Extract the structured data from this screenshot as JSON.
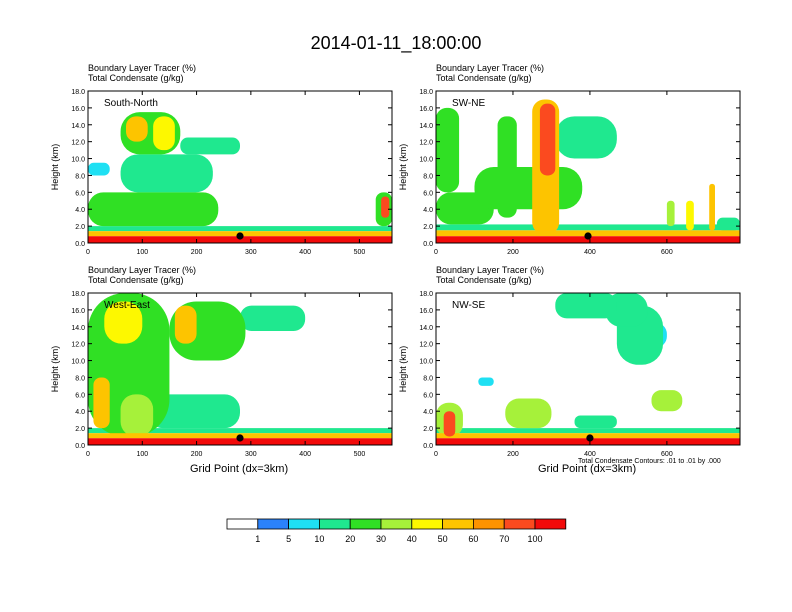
{
  "page_title": "2014-01-11_18:00:00",
  "chart_data": [
    {
      "type": "heatmap",
      "title_lines": [
        "Boundary Layer Tracer   (%)",
        "Total Condensate   (g/kg)"
      ],
      "label": "South-North",
      "xlabel": "",
      "ylabel": "Height (km)",
      "xlim": [
        0,
        560
      ],
      "ylim": [
        0,
        18
      ],
      "x_ticks": [
        "0",
        "100",
        "200",
        "300",
        "400",
        "500"
      ],
      "x_tick_values": [
        0,
        100,
        200,
        300,
        400,
        500
      ],
      "y_ticks": [
        "0.0",
        "2.0",
        "4.0",
        "6.0",
        "8.0",
        "10.0",
        "12.0",
        "14.0",
        "16.0",
        "18.0"
      ],
      "y_tick_values": [
        0,
        2,
        4,
        6,
        8,
        10,
        12,
        14,
        16,
        18
      ],
      "marker_x": 280,
      "blobs": [
        {
          "x": [
            0,
            560
          ],
          "y": [
            0,
            0.8
          ],
          "level": 100
        },
        {
          "x": [
            0,
            560
          ],
          "y": [
            0.8,
            1.4
          ],
          "level": 50
        },
        {
          "x": [
            0,
            560
          ],
          "y": [
            1.4,
            2.0
          ],
          "level": 10
        },
        {
          "x": [
            0,
            240
          ],
          "y": [
            2.0,
            6.0
          ],
          "level": 20
        },
        {
          "x": [
            60,
            230
          ],
          "y": [
            6.0,
            10.5
          ],
          "level": 10
        },
        {
          "x": [
            60,
            170
          ],
          "y": [
            10.5,
            15.5
          ],
          "level": 20
        },
        {
          "x": [
            70,
            110
          ],
          "y": [
            12.0,
            15.0
          ],
          "level": 50
        },
        {
          "x": [
            120,
            160
          ],
          "y": [
            11.0,
            15.0
          ],
          "level": 40
        },
        {
          "x": [
            170,
            280
          ],
          "y": [
            10.5,
            12.5
          ],
          "level": 10
        },
        {
          "x": [
            0,
            40
          ],
          "y": [
            8.0,
            9.5
          ],
          "level": 5
        },
        {
          "x": [
            530,
            560
          ],
          "y": [
            2.0,
            6.0
          ],
          "level": 20
        },
        {
          "x": [
            540,
            555
          ],
          "y": [
            3.0,
            5.5
          ],
          "level": 70
        }
      ]
    },
    {
      "type": "heatmap",
      "title_lines": [
        "Boundary Layer Tracer   (%)",
        "Total Condensate   (g/kg)"
      ],
      "label": "SW-NE",
      "xlabel": "",
      "ylabel": "Height (km)",
      "xlim": [
        0,
        790
      ],
      "ylim": [
        0,
        18
      ],
      "x_ticks": [
        "0",
        "200",
        "400",
        "600"
      ],
      "x_tick_values": [
        0,
        200,
        400,
        600
      ],
      "y_ticks": [
        "0.0",
        "2.0",
        "4.0",
        "6.0",
        "8.0",
        "10.0",
        "12.0",
        "14.0",
        "16.0",
        "18.0"
      ],
      "y_tick_values": [
        0,
        2,
        4,
        6,
        8,
        10,
        12,
        14,
        16,
        18
      ],
      "marker_x": 395,
      "blobs": [
        {
          "x": [
            0,
            790
          ],
          "y": [
            0,
            0.8
          ],
          "level": 100
        },
        {
          "x": [
            0,
            790
          ],
          "y": [
            0.8,
            1.5
          ],
          "level": 50
        },
        {
          "x": [
            0,
            790
          ],
          "y": [
            1.5,
            2.2
          ],
          "level": 10
        },
        {
          "x": [
            0,
            150
          ],
          "y": [
            2.2,
            6.0
          ],
          "level": 20
        },
        {
          "x": [
            0,
            60
          ],
          "y": [
            6.0,
            16.0
          ],
          "level": 20
        },
        {
          "x": [
            100,
            380
          ],
          "y": [
            4.0,
            9.0
          ],
          "level": 20
        },
        {
          "x": [
            160,
            210
          ],
          "y": [
            3.0,
            15.0
          ],
          "level": 20
        },
        {
          "x": [
            250,
            320
          ],
          "y": [
            1.0,
            17.0
          ],
          "level": 50
        },
        {
          "x": [
            270,
            310
          ],
          "y": [
            8.0,
            16.5
          ],
          "level": 70
        },
        {
          "x": [
            310,
            470
          ],
          "y": [
            10.0,
            15.0
          ],
          "level": 10
        },
        {
          "x": [
            600,
            620
          ],
          "y": [
            2.0,
            5.0
          ],
          "level": 30
        },
        {
          "x": [
            650,
            670
          ],
          "y": [
            1.5,
            5.0
          ],
          "level": 40
        },
        {
          "x": [
            710,
            725
          ],
          "y": [
            1.5,
            7.0
          ],
          "level": 50
        },
        {
          "x": [
            730,
            790
          ],
          "y": [
            1.5,
            3.0
          ],
          "level": 10
        }
      ]
    },
    {
      "type": "heatmap",
      "title_lines": [
        "Boundary Layer Tracer   (%)",
        "Total Condensate   (g/kg)"
      ],
      "label": "West-East",
      "xlabel": "Grid Point (dx=3km)",
      "ylabel": "Height (km)",
      "xlim": [
        0,
        560
      ],
      "ylim": [
        0,
        18
      ],
      "x_ticks": [
        "0",
        "100",
        "200",
        "300",
        "400",
        "500"
      ],
      "x_tick_values": [
        0,
        100,
        200,
        300,
        400,
        500
      ],
      "y_ticks": [
        "0.0",
        "2.0",
        "4.0",
        "6.0",
        "8.0",
        "10.0",
        "12.0",
        "14.0",
        "16.0",
        "18.0"
      ],
      "y_tick_values": [
        0,
        2,
        4,
        6,
        8,
        10,
        12,
        14,
        16,
        18
      ],
      "marker_x": 280,
      "blobs": [
        {
          "x": [
            0,
            560
          ],
          "y": [
            0,
            0.8
          ],
          "level": 100
        },
        {
          "x": [
            0,
            560
          ],
          "y": [
            0.8,
            1.4
          ],
          "level": 50
        },
        {
          "x": [
            0,
            560
          ],
          "y": [
            1.4,
            2.0
          ],
          "level": 10
        },
        {
          "x": [
            0,
            150
          ],
          "y": [
            1.0,
            18.0
          ],
          "level": 20
        },
        {
          "x": [
            10,
            40
          ],
          "y": [
            2.0,
            8.0
          ],
          "level": 50
        },
        {
          "x": [
            60,
            120
          ],
          "y": [
            1.0,
            6.0
          ],
          "level": 30
        },
        {
          "x": [
            30,
            100
          ],
          "y": [
            12.0,
            17.0
          ],
          "level": 40
        },
        {
          "x": [
            150,
            290
          ],
          "y": [
            10.0,
            17.0
          ],
          "level": 20
        },
        {
          "x": [
            160,
            200
          ],
          "y": [
            12.0,
            16.5
          ],
          "level": 50
        },
        {
          "x": [
            110,
            280
          ],
          "y": [
            2.0,
            6.0
          ],
          "level": 10
        },
        {
          "x": [
            280,
            400
          ],
          "y": [
            13.5,
            16.5
          ],
          "level": 10
        }
      ]
    },
    {
      "type": "heatmap",
      "title_lines": [
        "Boundary Layer Tracer   (%)",
        "Total Condensate   (g/kg)"
      ],
      "label": "NW-SE",
      "xlabel": "Grid Point (dx=3km)",
      "ylabel": "Height (km)",
      "xlim": [
        0,
        790
      ],
      "ylim": [
        0,
        18
      ],
      "x_ticks": [
        "0",
        "200",
        "400",
        "600"
      ],
      "x_tick_values": [
        0,
        200,
        400,
        600
      ],
      "y_ticks": [
        "0.0",
        "2.0",
        "4.0",
        "6.0",
        "8.0",
        "10.0",
        "12.0",
        "14.0",
        "16.0",
        "18.0"
      ],
      "y_tick_values": [
        0,
        2,
        4,
        6,
        8,
        10,
        12,
        14,
        16,
        18
      ],
      "marker_x": 400,
      "footnote": "Total Condensate Contours: .01 to .01 by .000",
      "blobs": [
        {
          "x": [
            0,
            790
          ],
          "y": [
            0,
            0.8
          ],
          "level": 100
        },
        {
          "x": [
            0,
            790
          ],
          "y": [
            0.8,
            1.4
          ],
          "level": 50
        },
        {
          "x": [
            0,
            790
          ],
          "y": [
            1.4,
            2.0
          ],
          "level": 10
        },
        {
          "x": [
            0,
            70
          ],
          "y": [
            1.0,
            5.0
          ],
          "level": 30
        },
        {
          "x": [
            20,
            50
          ],
          "y": [
            1.0,
            4.0
          ],
          "level": 70
        },
        {
          "x": [
            180,
            300
          ],
          "y": [
            2.0,
            5.5
          ],
          "level": 30
        },
        {
          "x": [
            360,
            470
          ],
          "y": [
            2.0,
            3.5
          ],
          "level": 10
        },
        {
          "x": [
            470,
            590
          ],
          "y": [
            9.5,
            16.5
          ],
          "level": 10
        },
        {
          "x": [
            440,
            550
          ],
          "y": [
            14.0,
            18.0
          ],
          "level": 10
        },
        {
          "x": [
            500,
            600
          ],
          "y": [
            11.5,
            14.5
          ],
          "level": 5
        },
        {
          "x": [
            560,
            640
          ],
          "y": [
            4.0,
            6.5
          ],
          "level": 30
        },
        {
          "x": [
            110,
            150
          ],
          "y": [
            7.0,
            8.0
          ],
          "level": 5
        },
        {
          "x": [
            310,
            470
          ],
          "y": [
            15.0,
            18.0
          ],
          "level": 10
        }
      ]
    }
  ],
  "colorbar": {
    "labels": [
      "1",
      "5",
      "10",
      "20",
      "30",
      "40",
      "50",
      "60",
      "70",
      "100"
    ],
    "levels": [
      1,
      5,
      10,
      20,
      30,
      40,
      50,
      60,
      70,
      100
    ],
    "colors": [
      "#ffffff",
      "#2b82fb",
      "#1fe0f3",
      "#1fe88f",
      "#30e024",
      "#a6f13a",
      "#fdf800",
      "#fdc400",
      "#fd9300",
      "#fb4a1f",
      "#f20a0a"
    ]
  }
}
